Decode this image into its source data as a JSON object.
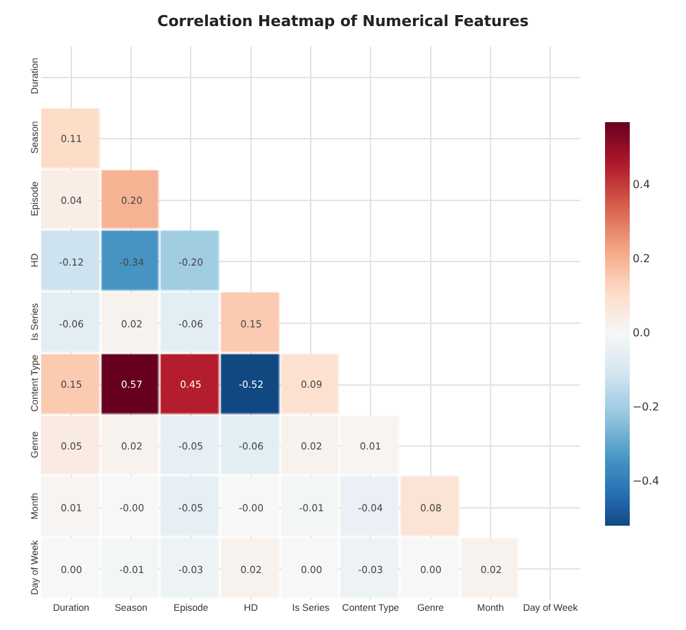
{
  "chart_data": {
    "type": "heatmap",
    "title": "Correlation Heatmap of Numerical Features",
    "categories": [
      "Duration",
      "Season",
      "Episode",
      "HD",
      "Is Series",
      "Content Type",
      "Genre",
      "Month",
      "Day of Week"
    ],
    "y_categories": [
      "Duration",
      "Season",
      "Episode",
      "HD",
      "Is Series",
      "Content Type",
      "Genre",
      "Month",
      "Day of Week"
    ],
    "cells": [
      [
        null,
        null,
        null,
        null,
        null,
        null,
        null,
        null,
        null
      ],
      [
        0.11,
        null,
        null,
        null,
        null,
        null,
        null,
        null,
        null
      ],
      [
        0.04,
        0.2,
        null,
        null,
        null,
        null,
        null,
        null,
        null
      ],
      [
        -0.12,
        -0.34,
        -0.2,
        null,
        null,
        null,
        null,
        null,
        null
      ],
      [
        -0.06,
        0.02,
        -0.06,
        0.15,
        null,
        null,
        null,
        null,
        null
      ],
      [
        0.15,
        0.57,
        0.45,
        -0.52,
        0.09,
        null,
        null,
        null,
        null
      ],
      [
        0.05,
        0.02,
        -0.05,
        -0.06,
        0.02,
        0.01,
        null,
        null,
        null
      ],
      [
        0.01,
        -0.0,
        -0.05,
        -0.0,
        -0.01,
        -0.04,
        0.08,
        null,
        null
      ],
      [
        0.0,
        -0.01,
        -0.03,
        0.02,
        0.0,
        -0.03,
        0.0,
        0.02,
        null
      ]
    ],
    "cell_labels": [
      [
        null,
        null,
        null,
        null,
        null,
        null,
        null,
        null,
        null
      ],
      [
        "0.11",
        null,
        null,
        null,
        null,
        null,
        null,
        null,
        null
      ],
      [
        "0.04",
        "0.20",
        null,
        null,
        null,
        null,
        null,
        null,
        null
      ],
      [
        "-0.12",
        "-0.34",
        "-0.20",
        null,
        null,
        null,
        null,
        null,
        null
      ],
      [
        "-0.06",
        "0.02",
        "-0.06",
        "0.15",
        null,
        null,
        null,
        null,
        null
      ],
      [
        "0.15",
        "0.57",
        "0.45",
        "-0.52",
        "0.09",
        null,
        null,
        null,
        null
      ],
      [
        "0.05",
        "0.02",
        "-0.05",
        "-0.06",
        "0.02",
        "0.01",
        null,
        null,
        null
      ],
      [
        "0.01",
        "-0.00",
        "-0.05",
        "-0.00",
        "-0.01",
        "-0.04",
        "0.08",
        null,
        null
      ],
      [
        "0.00",
        "-0.01",
        "-0.03",
        "0.02",
        "0.00",
        "-0.03",
        "0.00",
        "0.02",
        null
      ]
    ],
    "clim": [
      -0.52,
      0.57
    ],
    "cticks": [
      {
        "value": -0.4,
        "label": "−0.4"
      },
      {
        "value": -0.2,
        "label": "−0.2"
      },
      {
        "value": 0.0,
        "label": "0.0"
      },
      {
        "value": 0.2,
        "label": "0.2"
      },
      {
        "value": 0.4,
        "label": "0.4"
      }
    ],
    "grid": true
  }
}
